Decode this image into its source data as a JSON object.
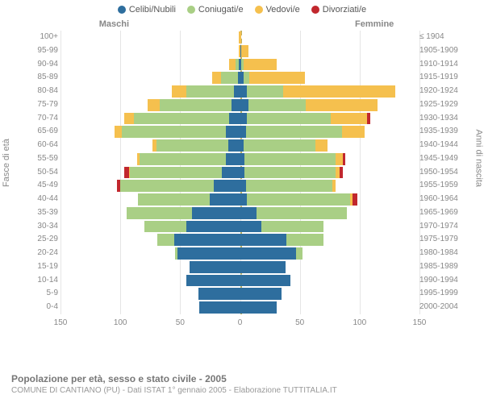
{
  "legend": {
    "items": [
      {
        "label": "Celibi/Nubili",
        "color": "#2e6e9e"
      },
      {
        "label": "Coniugati/e",
        "color": "#a9cf85"
      },
      {
        "label": "Vedovi/e",
        "color": "#f5c04e"
      },
      {
        "label": "Divorziati/e",
        "color": "#c1272d"
      }
    ]
  },
  "gender": {
    "m": "Maschi",
    "f": "Femmine"
  },
  "axis": {
    "left_title": "Fasce di età",
    "right_title": "Anni di nascita",
    "x_max": 150,
    "x_ticks": [
      150,
      100,
      50,
      0,
      50,
      100,
      150
    ]
  },
  "colors": {
    "single": "#2e6e9e",
    "married": "#a9cf85",
    "widowed": "#f5c04e",
    "divorced": "#c1272d",
    "grid": "#e5e5e5",
    "center": "#c0b060"
  },
  "rows": [
    {
      "age": "100+",
      "born": "≤ 1904",
      "m": {
        "s": 0,
        "c": 0,
        "w": 1,
        "d": 0
      },
      "f": {
        "s": 0,
        "c": 0,
        "w": 1,
        "d": 0
      }
    },
    {
      "age": "95-99",
      "born": "1905-1909",
      "m": {
        "s": 0,
        "c": 0,
        "w": 1,
        "d": 0
      },
      "f": {
        "s": 1,
        "c": 0,
        "w": 6,
        "d": 0
      }
    },
    {
      "age": "90-94",
      "born": "1910-1914",
      "m": {
        "s": 1,
        "c": 3,
        "w": 5,
        "d": 0
      },
      "f": {
        "s": 1,
        "c": 2,
        "w": 28,
        "d": 0
      }
    },
    {
      "age": "85-89",
      "born": "1915-1919",
      "m": {
        "s": 2,
        "c": 14,
        "w": 7,
        "d": 0
      },
      "f": {
        "s": 3,
        "c": 5,
        "w": 46,
        "d": 0
      }
    },
    {
      "age": "80-84",
      "born": "1920-1924",
      "m": {
        "s": 5,
        "c": 40,
        "w": 12,
        "d": 0
      },
      "f": {
        "s": 6,
        "c": 30,
        "w": 94,
        "d": 0
      }
    },
    {
      "age": "75-79",
      "born": "1925-1929",
      "m": {
        "s": 7,
        "c": 60,
        "w": 10,
        "d": 0
      },
      "f": {
        "s": 7,
        "c": 48,
        "w": 60,
        "d": 0
      }
    },
    {
      "age": "70-74",
      "born": "1930-1934",
      "m": {
        "s": 9,
        "c": 80,
        "w": 8,
        "d": 0
      },
      "f": {
        "s": 6,
        "c": 70,
        "w": 30,
        "d": 3
      }
    },
    {
      "age": "65-69",
      "born": "1935-1939",
      "m": {
        "s": 12,
        "c": 87,
        "w": 6,
        "d": 0
      },
      "f": {
        "s": 5,
        "c": 80,
        "w": 19,
        "d": 0
      }
    },
    {
      "age": "60-64",
      "born": "1940-1944",
      "m": {
        "s": 10,
        "c": 60,
        "w": 3,
        "d": 0
      },
      "f": {
        "s": 3,
        "c": 60,
        "w": 10,
        "d": 0
      }
    },
    {
      "age": "55-59",
      "born": "1945-1949",
      "m": {
        "s": 12,
        "c": 72,
        "w": 2,
        "d": 0
      },
      "f": {
        "s": 4,
        "c": 76,
        "w": 6,
        "d": 2
      }
    },
    {
      "age": "50-54",
      "born": "1950-1954",
      "m": {
        "s": 15,
        "c": 77,
        "w": 1,
        "d": 4
      },
      "f": {
        "s": 4,
        "c": 76,
        "w": 3,
        "d": 3
      }
    },
    {
      "age": "45-49",
      "born": "1955-1959",
      "m": {
        "s": 22,
        "c": 78,
        "w": 0,
        "d": 3
      },
      "f": {
        "s": 5,
        "c": 72,
        "w": 3,
        "d": 0
      }
    },
    {
      "age": "40-44",
      "born": "1960-1964",
      "m": {
        "s": 25,
        "c": 60,
        "w": 0,
        "d": 0
      },
      "f": {
        "s": 6,
        "c": 86,
        "w": 2,
        "d": 4
      }
    },
    {
      "age": "35-39",
      "born": "1965-1969",
      "m": {
        "s": 40,
        "c": 55,
        "w": 0,
        "d": 0
      },
      "f": {
        "s": 14,
        "c": 75,
        "w": 0,
        "d": 0
      }
    },
    {
      "age": "30-34",
      "born": "1970-1974",
      "m": {
        "s": 45,
        "c": 35,
        "w": 0,
        "d": 0
      },
      "f": {
        "s": 18,
        "c": 52,
        "w": 0,
        "d": 0
      }
    },
    {
      "age": "25-29",
      "born": "1975-1979",
      "m": {
        "s": 55,
        "c": 14,
        "w": 0,
        "d": 0
      },
      "f": {
        "s": 39,
        "c": 31,
        "w": 0,
        "d": 0
      }
    },
    {
      "age": "20-24",
      "born": "1980-1984",
      "m": {
        "s": 52,
        "c": 2,
        "w": 0,
        "d": 0
      },
      "f": {
        "s": 47,
        "c": 5,
        "w": 0,
        "d": 0
      }
    },
    {
      "age": "15-19",
      "born": "1985-1989",
      "m": {
        "s": 42,
        "c": 0,
        "w": 0,
        "d": 0
      },
      "f": {
        "s": 38,
        "c": 0,
        "w": 0,
        "d": 0
      }
    },
    {
      "age": "10-14",
      "born": "1990-1994",
      "m": {
        "s": 45,
        "c": 0,
        "w": 0,
        "d": 0
      },
      "f": {
        "s": 42,
        "c": 0,
        "w": 0,
        "d": 0
      }
    },
    {
      "age": "5-9",
      "born": "1995-1999",
      "m": {
        "s": 35,
        "c": 0,
        "w": 0,
        "d": 0
      },
      "f": {
        "s": 35,
        "c": 0,
        "w": 0,
        "d": 0
      }
    },
    {
      "age": "0-4",
      "born": "2000-2004",
      "m": {
        "s": 34,
        "c": 0,
        "w": 0,
        "d": 0
      },
      "f": {
        "s": 31,
        "c": 0,
        "w": 0,
        "d": 0
      }
    }
  ],
  "footer": {
    "title": "Popolazione per età, sesso e stato civile - 2005",
    "sub": "COMUNE DI CANTIANO (PU) - Dati ISTAT 1° gennaio 2005 - Elaborazione TUTTITALIA.IT"
  }
}
